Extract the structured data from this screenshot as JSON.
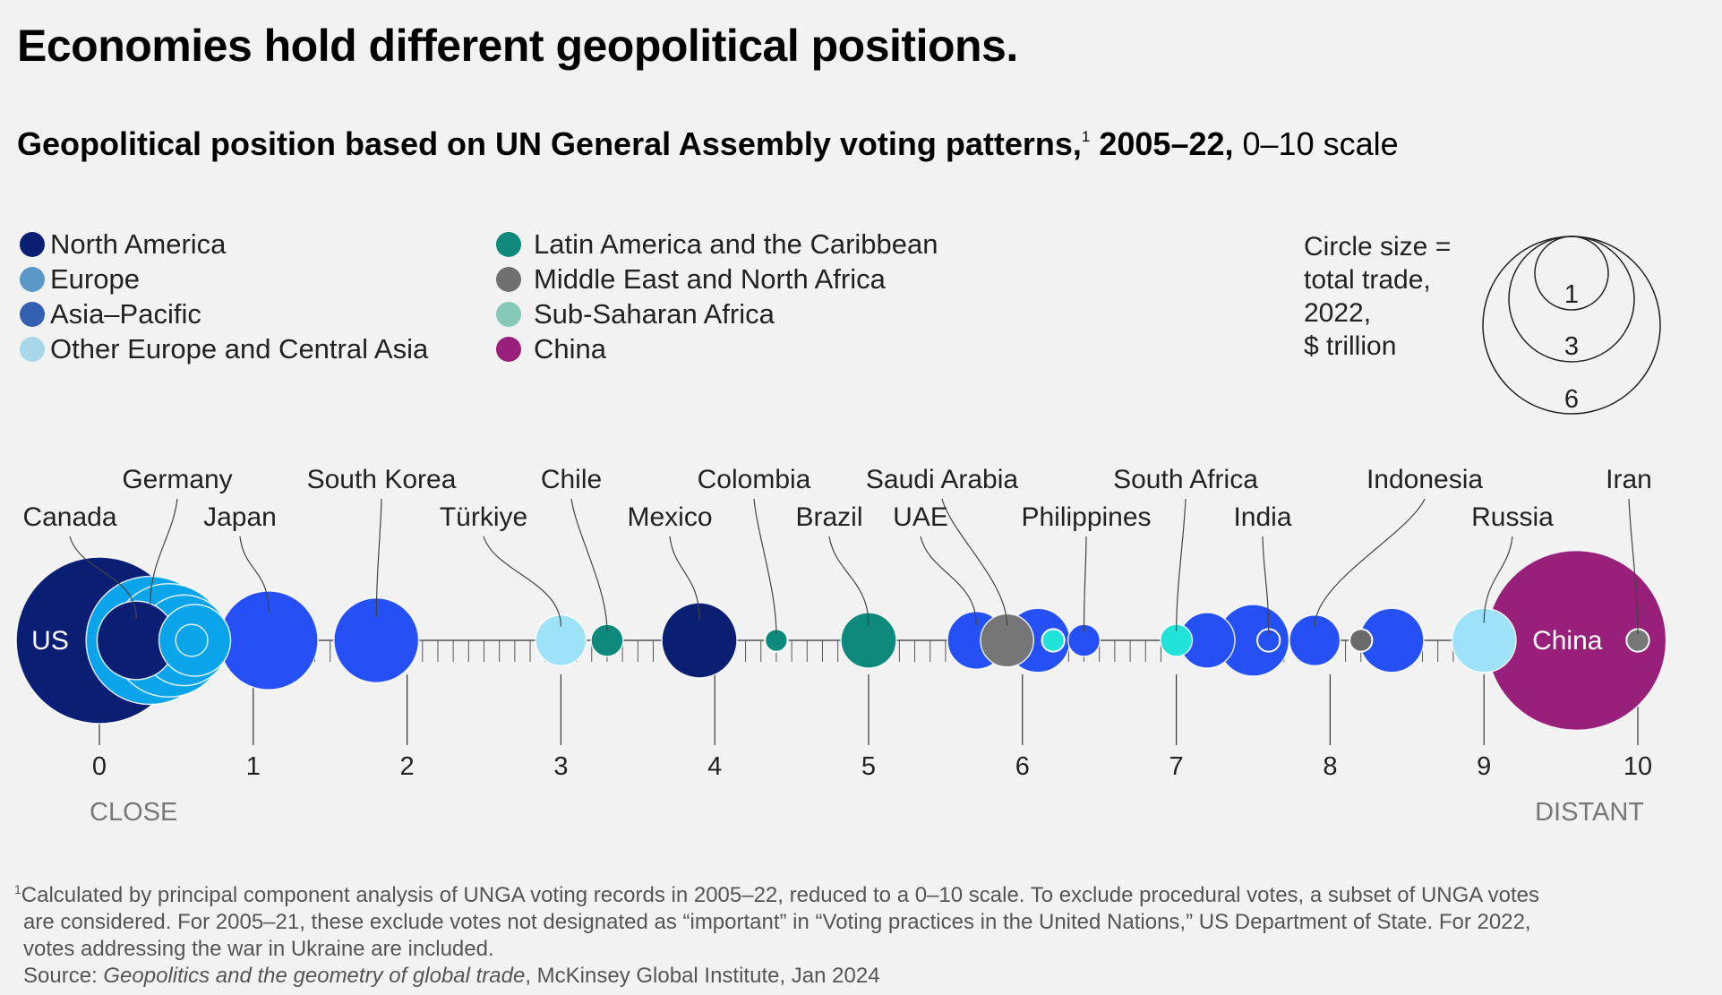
{
  "title": "Economies hold different geopolitical positions.",
  "subtitle": {
    "bold": "Geopolitical position based on UN General Assembly voting patterns,",
    "sup": "1",
    "bold2": " 2005–22,",
    "normal": " 0–10 scale"
  },
  "legend": [
    {
      "label": "North America",
      "color": "#0a1f73"
    },
    {
      "label": "Europe",
      "color": "#5a98c8"
    },
    {
      "label": "Asia–Pacific",
      "color": "#3360b0"
    },
    {
      "label": "Other Europe and Central Asia",
      "color": "#a9d7ea"
    },
    {
      "label": "Latin America and the Caribbean",
      "color": "#0e8a7c"
    },
    {
      "label": "Middle East and North Africa",
      "color": "#707070"
    },
    {
      "label": "Sub-Saharan Africa",
      "color": "#86c9b9"
    },
    {
      "label": "China",
      "color": "#98207a"
    }
  ],
  "size_key": {
    "lines": [
      "Circle size =",
      "total trade,",
      "2022,",
      "$ trillion"
    ],
    "values": [
      "1",
      "3",
      "6"
    ]
  },
  "chart_data": {
    "type": "scatter",
    "title": "Geopolitical position based on UN General Assembly voting patterns, 2005–22, 0–10 scale",
    "xlim": [
      0,
      10
    ],
    "x_ticks": [
      "0",
      "1",
      "2",
      "3",
      "4",
      "5",
      "6",
      "7",
      "8",
      "9",
      "10"
    ],
    "x_end_labels": {
      "left": "CLOSE",
      "right": "DISTANT"
    },
    "size_measure": "total trade, 2022, $ trillion",
    "points": [
      {
        "name": "US",
        "x": 0.0,
        "trade": 5.4,
        "color": "#0a1f73"
      },
      {
        "name": "Canada",
        "x": 0.24,
        "trade": 1.2,
        "color": "#0a1f73"
      },
      {
        "name": "Germany",
        "x": 0.33,
        "trade": 3.2,
        "color": "#0aa4ea"
      },
      {
        "name": "",
        "x": 0.45,
        "trade": 2.5,
        "color": "#0aa4ea"
      },
      {
        "name": "",
        "x": 0.55,
        "trade": 1.6,
        "color": "#0aa4ea"
      },
      {
        "name": "",
        "x": 0.62,
        "trade": 1.0,
        "color": "#0aa4ea"
      },
      {
        "name": "",
        "x": 0.6,
        "trade": 0.2,
        "color": "#0aa4ea"
      },
      {
        "name": "Japan",
        "x": 1.1,
        "trade": 1.9,
        "color": "#2450f5"
      },
      {
        "name": "South Korea",
        "x": 1.8,
        "trade": 1.4,
        "color": "#2450f5"
      },
      {
        "name": "Türkiye",
        "x": 3.0,
        "trade": 0.5,
        "color": "#9ee2f9"
      },
      {
        "name": "Chile",
        "x": 3.3,
        "trade": 0.2,
        "color": "#0e8a7c"
      },
      {
        "name": "Mexico",
        "x": 3.9,
        "trade": 1.1,
        "color": "#0a1f73"
      },
      {
        "name": "Colombia",
        "x": 4.4,
        "trade": 0.1,
        "color": "#0e8a7c"
      },
      {
        "name": "Brazil",
        "x": 5.0,
        "trade": 0.6,
        "color": "#0e8a7c"
      },
      {
        "name": "UAE",
        "x": 5.7,
        "trade": 0.65,
        "color": "#2450f5"
      },
      {
        "name": "Saudi Arabia",
        "x": 5.9,
        "trade": 0.55,
        "color": "#767676"
      },
      {
        "name": "",
        "x": 6.1,
        "trade": 0.8,
        "color": "#2450f5"
      },
      {
        "name": "",
        "x": 6.2,
        "trade": 0.1,
        "color": "#21e3d9"
      },
      {
        "name": "Philippines",
        "x": 6.4,
        "trade": 0.2,
        "color": "#2450f5"
      },
      {
        "name": "South Africa",
        "x": 7.0,
        "trade": 0.2,
        "color": "#21e3d9"
      },
      {
        "name": "",
        "x": 7.2,
        "trade": 0.6,
        "color": "#2450f5"
      },
      {
        "name": "",
        "x": 7.5,
        "trade": 1.0,
        "color": "#2450f5"
      },
      {
        "name": "India",
        "x": 7.6,
        "trade": 0.1,
        "color": "#2450f5"
      },
      {
        "name": "Indonesia",
        "x": 7.9,
        "trade": 0.5,
        "color": "#2450f5"
      },
      {
        "name": "",
        "x": 8.2,
        "trade": 0.1,
        "color": "#6a6a6a"
      },
      {
        "name": "",
        "x": 8.4,
        "trade": 0.8,
        "color": "#2450f5"
      },
      {
        "name": "Russia",
        "x": 9.0,
        "trade": 0.8,
        "color": "#9ee2f9"
      },
      {
        "name": "China",
        "x": 9.6,
        "trade": 6.3,
        "color": "#98207a"
      },
      {
        "name": "Iran",
        "x": 10.0,
        "trade": 0.1,
        "color": "#777777"
      }
    ]
  },
  "footnote": {
    "sup": "1",
    "line1": "Calculated by principal component analysis of UNGA voting records in 2005–22, reduced to a 0–10 scale. To exclude procedural votes, a subset of UNGA votes",
    "line2": "are considered. For 2005–21, these exclude votes not designated as “important” in “Voting practices in the United Nations,” US Department of State. For 2022,",
    "line3": "votes addressing the war in Ukraine are included.",
    "source_prefix": "Source: ",
    "source_title": "Geopolitics and the geometry of global trade",
    "source_suffix": ", McKinsey Global Institute, Jan 2024"
  }
}
